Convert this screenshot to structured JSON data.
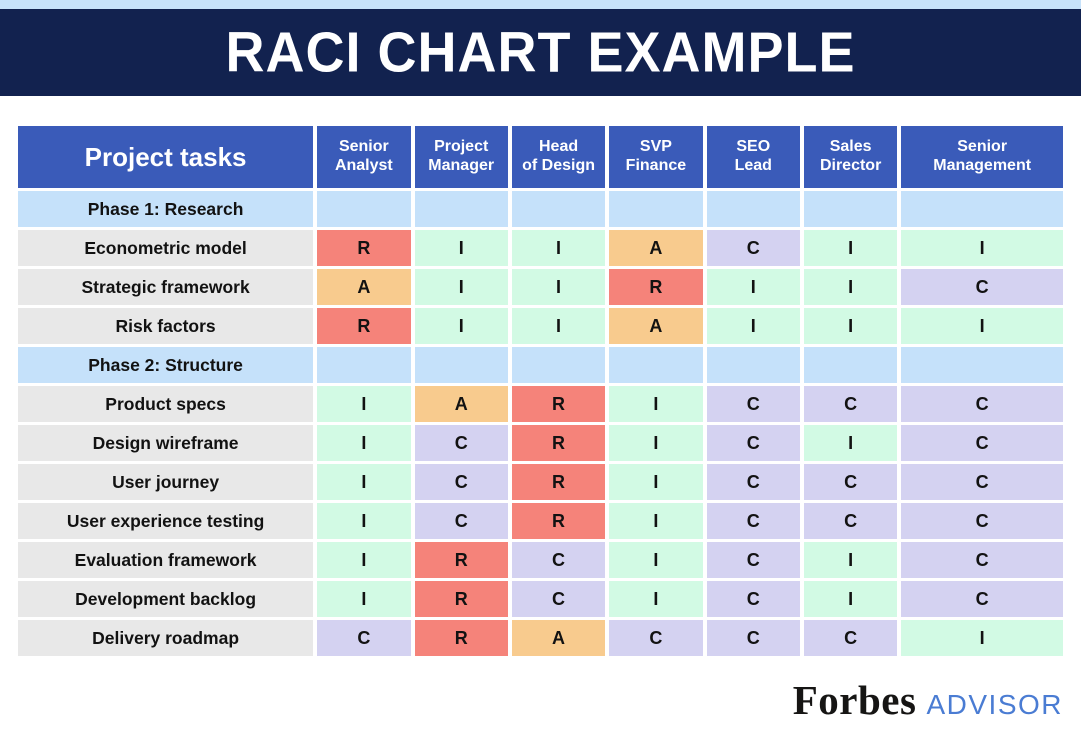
{
  "banner": {
    "title": "RACI CHART EXAMPLE"
  },
  "colors": {
    "strip": "#C7E2FA",
    "banner": "#12224F",
    "headblue": "#3A5BB9",
    "phaseblue": "#C5E1FA",
    "graycell": "#E8E8E8",
    "advisor": "#4A7CD3"
  },
  "chart_data": {
    "type": "table",
    "title": "RACI CHART EXAMPLE",
    "task_header": "Project tasks",
    "columns": [
      "Senior Analyst",
      "Project Manager",
      "Head of Design",
      "SVP Finance",
      "SEO Lead",
      "Sales Director",
      "Senior Management"
    ],
    "legend_colors": {
      "R": "#F5837A",
      "A": "#F8CB8E",
      "C": "#D4D2F1",
      "I": "#D2FAE4"
    },
    "rows": [
      {
        "type": "phase",
        "label": "Phase 1: Research",
        "values": []
      },
      {
        "type": "task",
        "label": "Econometric model",
        "values": [
          "R",
          "I",
          "I",
          "A",
          "C",
          "I",
          "I"
        ]
      },
      {
        "type": "task",
        "label": "Strategic framework",
        "values": [
          "A",
          "I",
          "I",
          "R",
          "I",
          "I",
          "C"
        ]
      },
      {
        "type": "task",
        "label": "Risk factors",
        "values": [
          "R",
          "I",
          "I",
          "A",
          "I",
          "I",
          "I"
        ]
      },
      {
        "type": "phase",
        "label": "Phase 2: Structure",
        "values": []
      },
      {
        "type": "task",
        "label": "Product specs",
        "values": [
          "I",
          "A",
          "R",
          "I",
          "C",
          "C",
          "C"
        ]
      },
      {
        "type": "task",
        "label": "Design wireframe",
        "values": [
          "I",
          "C",
          "R",
          "I",
          "C",
          "I",
          "C"
        ]
      },
      {
        "type": "task",
        "label": "User journey",
        "values": [
          "I",
          "C",
          "R",
          "I",
          "C",
          "C",
          "C"
        ]
      },
      {
        "type": "task",
        "label": "User experience testing",
        "values": [
          "I",
          "C",
          "R",
          "I",
          "C",
          "C",
          "C"
        ]
      },
      {
        "type": "task",
        "label": "Evaluation framework",
        "values": [
          "I",
          "R",
          "C",
          "I",
          "C",
          "I",
          "C"
        ]
      },
      {
        "type": "task",
        "label": "Development backlog",
        "values": [
          "I",
          "R",
          "C",
          "I",
          "C",
          "I",
          "C"
        ]
      },
      {
        "type": "task",
        "label": "Delivery roadmap",
        "values": [
          "C",
          "R",
          "A",
          "C",
          "C",
          "C",
          "I"
        ]
      }
    ]
  },
  "footer": {
    "brand": "Forbes",
    "brand_suffix": "ADVISOR"
  }
}
